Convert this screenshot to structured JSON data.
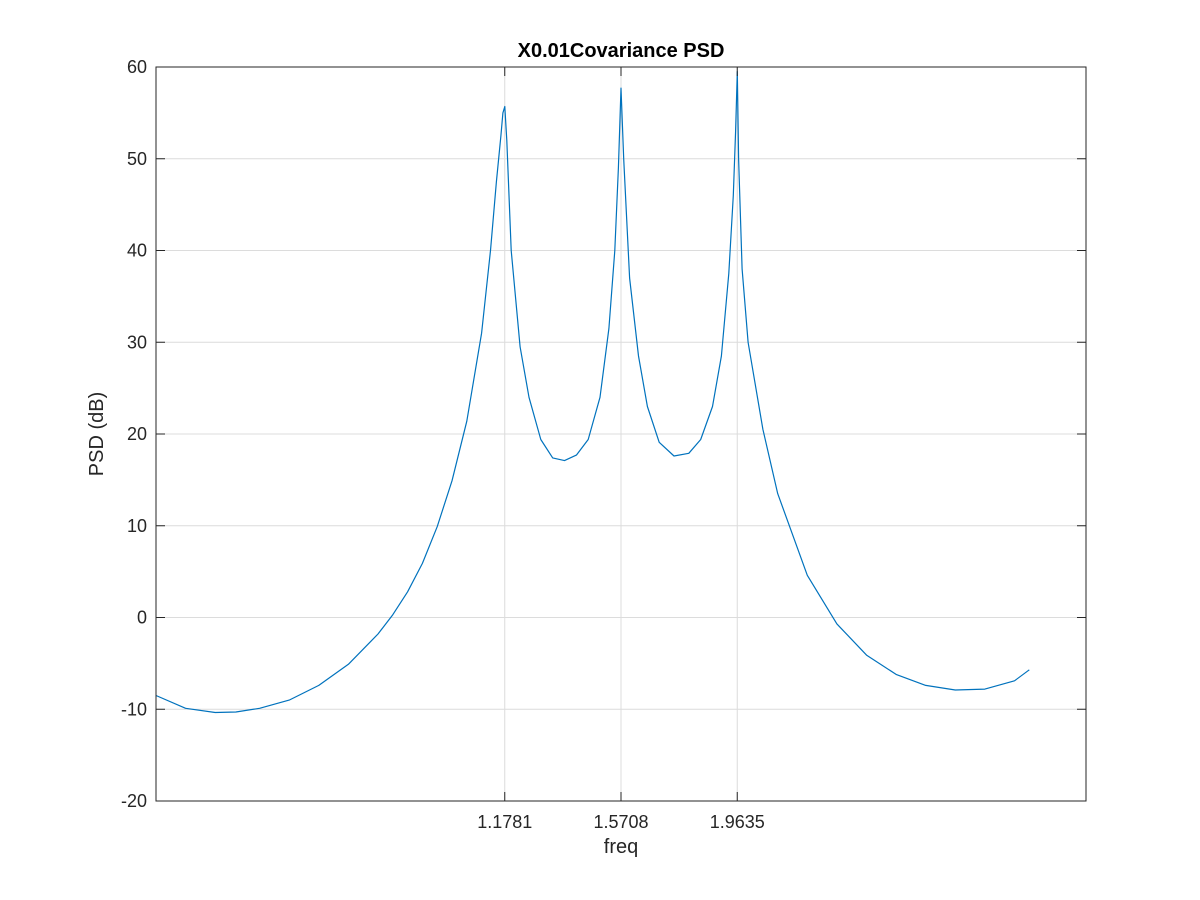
{
  "chart_data": {
    "type": "line",
    "title": "X0.01Covariance PSD",
    "xlabel": "freq",
    "ylabel": "PSD (dB)",
    "xlim": [
      0,
      3.1416
    ],
    "ylim": [
      -20,
      60
    ],
    "grid": true,
    "x_ticks": [
      1.1781,
      1.5708,
      1.9635
    ],
    "x_tick_labels": [
      "1.1781",
      "1.5708",
      "1.9635"
    ],
    "y_ticks": [
      -20,
      -10,
      0,
      10,
      20,
      30,
      40,
      50,
      60
    ],
    "y_tick_labels": [
      "-20",
      "-10",
      "0",
      "10",
      "20",
      "30",
      "40",
      "50",
      "60"
    ],
    "series": [
      {
        "color": "#0072bd",
        "x": [
          0.0,
          0.1,
          0.2,
          0.27,
          0.35,
          0.45,
          0.55,
          0.65,
          0.75,
          0.8,
          0.85,
          0.9,
          0.95,
          1.0,
          1.05,
          1.1,
          1.13,
          1.15,
          1.165,
          1.172,
          1.1781,
          1.185,
          1.2,
          1.23,
          1.26,
          1.3,
          1.34,
          1.38,
          1.42,
          1.46,
          1.5,
          1.53,
          1.55,
          1.562,
          1.5708,
          1.58,
          1.6,
          1.63,
          1.66,
          1.7,
          1.75,
          1.8,
          1.84,
          1.88,
          1.91,
          1.935,
          1.95,
          1.958,
          1.9635,
          1.968,
          1.98,
          2.0,
          2.05,
          2.1,
          2.2,
          2.3,
          2.4,
          2.5,
          2.6,
          2.7,
          2.8,
          2.9,
          2.95
        ],
        "y": [
          -8.5,
          -9.9,
          -10.35,
          -10.3,
          -9.9,
          -9.0,
          -7.4,
          -5.1,
          -1.8,
          0.3,
          2.8,
          5.9,
          9.9,
          14.9,
          21.4,
          31.0,
          40.0,
          47.5,
          52.5,
          55.0,
          55.7,
          52.0,
          40.0,
          29.5,
          24.0,
          19.4,
          17.4,
          17.1,
          17.7,
          19.4,
          24.0,
          31.5,
          40.0,
          49.0,
          57.7,
          50.0,
          37.0,
          28.5,
          23.0,
          19.1,
          17.6,
          17.9,
          19.4,
          23.0,
          28.5,
          37.5,
          46.0,
          53.0,
          59.5,
          50.0,
          38.0,
          30.0,
          20.5,
          13.5,
          4.6,
          -0.7,
          -4.1,
          -6.2,
          -7.4,
          -7.9,
          -7.8,
          -6.9,
          -5.7
        ]
      }
    ]
  }
}
